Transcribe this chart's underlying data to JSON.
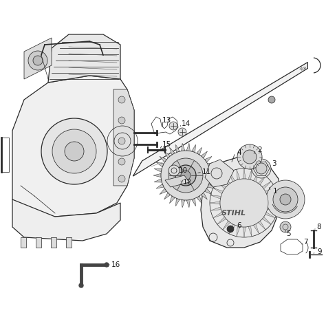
{
  "background_color": "#ffffff",
  "line_color": "#2a2a2a",
  "label_color": "#1a1a1a",
  "figsize": [
    4.74,
    4.74
  ],
  "dpi": 100,
  "xlim": [
    0,
    474
  ],
  "ylim": [
    0,
    474
  ],
  "label_fontsize": 7.5
}
